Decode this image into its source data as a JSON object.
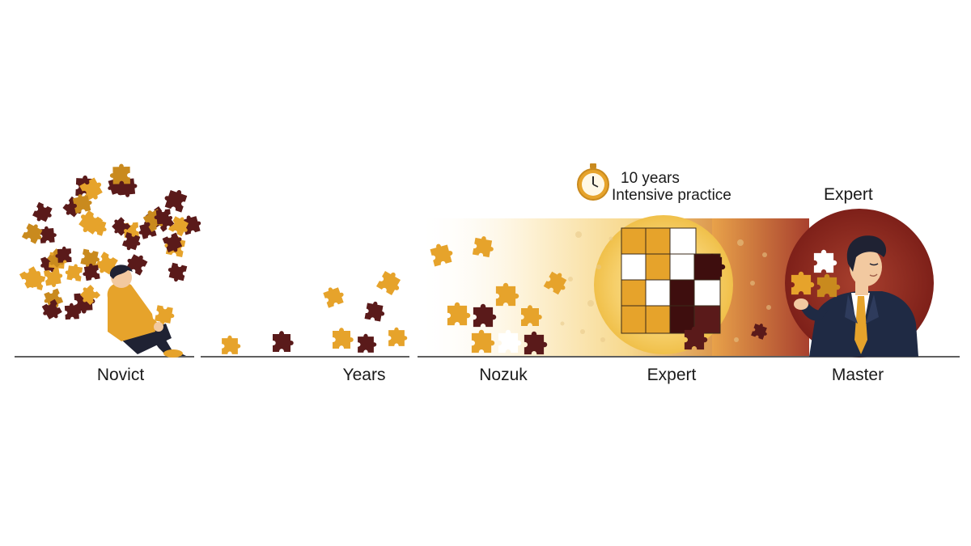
{
  "stages": [
    {
      "label": "Novict"
    },
    {
      "label": "Years"
    },
    {
      "label": "Nozuk"
    },
    {
      "label": "Expert"
    },
    {
      "label": "Master"
    }
  ],
  "practice_note": {
    "years": "10 years",
    "detail": "Intensive practice",
    "icon": "stopwatch-icon"
  },
  "master_title": "Expert",
  "colors": {
    "gold": "#E6A32B",
    "dark_gold": "#C98A1E",
    "maroon": "#5A1A1A",
    "deep_maroon": "#3E0E0E",
    "cream": "#FBE7A6",
    "red_circle": "#8A2A22",
    "ground": "#2a2a2a"
  }
}
